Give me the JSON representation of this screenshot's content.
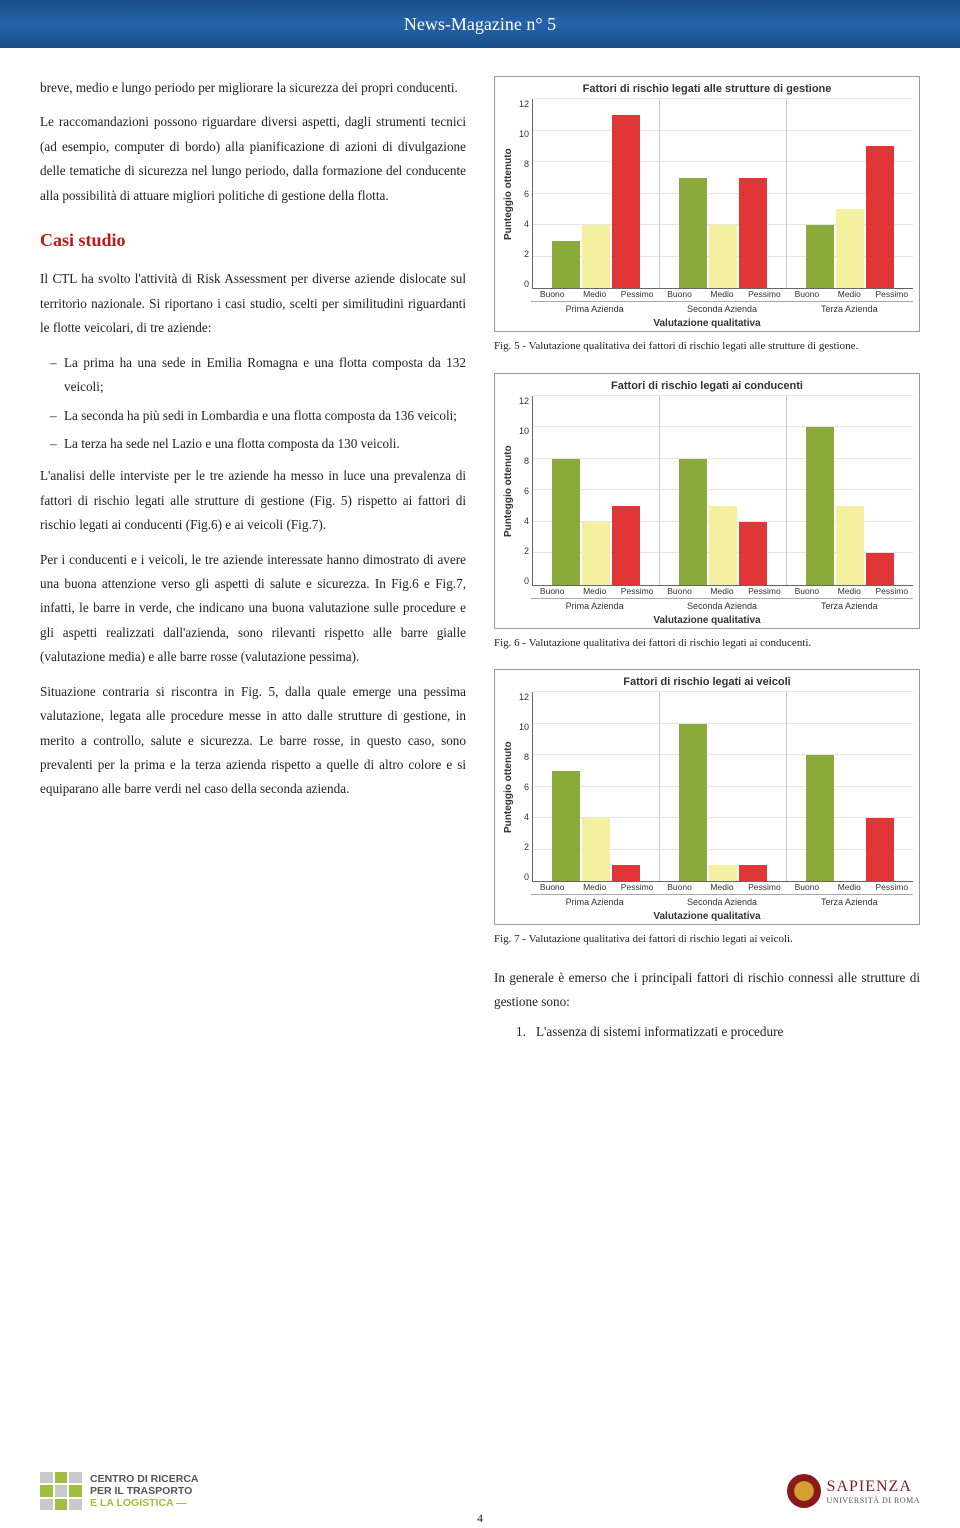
{
  "header": {
    "title": "News-Magazine n° 5"
  },
  "left": {
    "p1": "breve, medio e lungo periodo per migliorare la sicurezza dei propri conducenti.",
    "p2": "Le raccomandazioni possono riguardare diversi aspetti, dagli strumenti tecnici (ad esempio, computer di bordo) alla pianificazione di azioni di divulgazione delle tematiche di sicurezza nel lungo periodo, dalla formazione del conducente alla possibilità di attuare migliori politiche di gestione della flotta.",
    "section": "Casi studio",
    "p3": "Il CTL ha svolto l'attività di Risk Assessment per diverse aziende dislocate sul territorio nazionale. Si riportano i casi studio, scelti per similitudini riguardanti le flotte veicolari, di tre aziende:",
    "b1": "La prima ha una sede in Emilia Romagna e una flotta composta da 132 veicoli;",
    "b2": "La seconda ha più sedi in Lombardia e una flotta composta da 136 veicoli;",
    "b3": "La terza ha sede nel Lazio e una flotta composta da 130 veicoli.",
    "p4": "L'analisi delle interviste per le tre aziende ha messo in luce una prevalenza di fattori di rischio legati alle strutture di gestione (Fig. 5) rispetto ai fattori di rischio legati ai conducenti (Fig.6) e ai veicoli (Fig.7).",
    "p5": "Per i conducenti e i veicoli, le tre aziende interessate hanno dimostrato di avere una buona attenzione verso gli aspetti di salute e sicurezza. In Fig.6 e Fig.7, infatti, le barre in verde, che indicano una buona valutazione sulle procedure e gli aspetti realizzati dall'azienda, sono rilevanti rispetto alle barre gialle (valutazione media) e alle barre rosse (valutazione pessima).",
    "p6": "Situazione contraria si riscontra in Fig. 5, dalla quale emerge una pessima valutazione, legata alle procedure messe in atto dalle strutture di gestione, in merito a controllo, salute e sicurezza. Le barre rosse, in questo caso, sono prevalenti per la prima e la terza azienda rispetto a quelle di altro colore e si equiparano alle barre verdi nel caso della seconda azienda."
  },
  "right": {
    "trail1": "In generale è emerso che i principali fattori di rischio connessi alle strutture di gestione sono:",
    "trail_num": "1.",
    "trail_item": "L'assenza di sistemi informatizzati e procedure"
  },
  "chart_common": {
    "ylabel": "Punteggio ottenuto",
    "ymax": 12,
    "ytick_step": 2,
    "ticks": [
      "12",
      "10",
      "8",
      "6",
      "4",
      "2",
      "0"
    ],
    "sub_labels": [
      "Buono",
      "Medio",
      "Pessimo"
    ],
    "group_labels": [
      "Prima Azienda",
      "Seconda Azienda",
      "Terza Azienda"
    ],
    "valutazione": "Valutazione qualitativa",
    "colors": {
      "buono": "#8aab3c",
      "medio": "#f5f0a0",
      "pessimo": "#e03636"
    },
    "grid_color": "#e5e5e5",
    "border_color": "#999999"
  },
  "chart5": {
    "title": "Fattori di rischio legati alle strutture di gestione",
    "caption": "Fig. 5 - Valutazione qualitativa dei fattori di rischio legati alle strutture di gestione.",
    "data": [
      {
        "buono": 3,
        "medio": 4,
        "pessimo": 11
      },
      {
        "buono": 7,
        "medio": 4,
        "pessimo": 7
      },
      {
        "buono": 4,
        "medio": 5,
        "pessimo": 9
      }
    ]
  },
  "chart6": {
    "title": "Fattori di rischio legati ai conducenti",
    "caption": "Fig. 6 - Valutazione qualitativa dei fattori di rischio legati ai conducenti.",
    "data": [
      {
        "buono": 8,
        "medio": 4,
        "pessimo": 5
      },
      {
        "buono": 8,
        "medio": 5,
        "pessimo": 4
      },
      {
        "buono": 10,
        "medio": 5,
        "pessimo": 2
      }
    ]
  },
  "chart7": {
    "title": "Fattori di rischio legati ai veicoli",
    "caption": "Fig. 7 - Valutazione qualitativa dei fattori di rischio legati ai veicoli.",
    "data": [
      {
        "buono": 7,
        "medio": 4,
        "pessimo": 1
      },
      {
        "buono": 10,
        "medio": 1,
        "pessimo": 1
      },
      {
        "buono": 8,
        "medio": 0,
        "pessimo": 4
      }
    ]
  },
  "footer": {
    "ctl_line1": "CENTRO DI RICERCA",
    "ctl_line2": "PER IL TRASPORTO",
    "ctl_line3": "E LA LOGISTICA",
    "sap_big": "SAPIENZA",
    "sap_small": "UNIVERSITÀ DI ROMA",
    "page": "4"
  }
}
